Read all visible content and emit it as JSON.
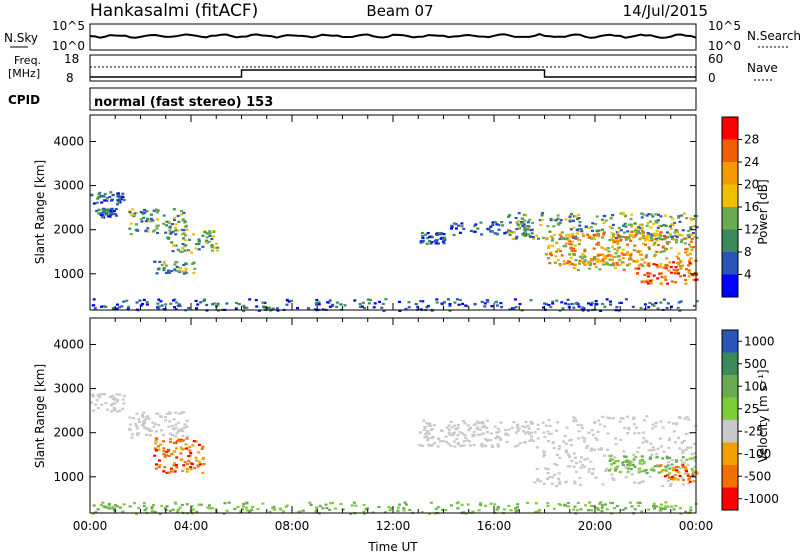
{
  "header": {
    "station": "Hankasalmi (fitACF)",
    "beam": "Beam 07",
    "date": "14/Jul/2015"
  },
  "top_panels": {
    "nsky_label": "N.Sky",
    "nsearch_label": "N.Search",
    "nsky_ticks": [
      "10^5",
      "10^0"
    ],
    "nsearch_ticks": [
      "10^5",
      "10^0"
    ],
    "freq_label_line1": "Freq.",
    "freq_label_line2": "[MHz]",
    "freq_ticks": [
      "18",
      "8"
    ],
    "nave_label": "Nave",
    "nave_ticks": [
      "60",
      "0"
    ],
    "cpid_label": "CPID",
    "cpid_text": "normal (fast stereo) 153"
  },
  "colors": {
    "power": [
      "#0000ff",
      "#2a55b8",
      "#3a8a5a",
      "#6aaa50",
      "#f0c000",
      "#f29a00",
      "#f06000",
      "#ff0000"
    ],
    "velocity": [
      "#2a55b8",
      "#3a8a5a",
      "#6aaa50",
      "#7ccc3a",
      "#c8c8c8",
      "#f0a000",
      "#f07000",
      "#ff0000"
    ],
    "ground_scatter": "#c0c0c0"
  },
  "chart_data": [
    {
      "type": "heatmap",
      "panel": "power",
      "ylabel": "Slant Range [km]",
      "xlabel": "",
      "ylim": [
        180,
        4600
      ],
      "yticks": [
        "1000",
        "2000",
        "3000",
        "4000"
      ],
      "xlim_hours": [
        0,
        24
      ],
      "colorbar_label": "Power [dB]",
      "colorbar_range": [
        0,
        32
      ],
      "colorbar_ticks": [
        "4",
        "8",
        "12",
        "16",
        "20",
        "24",
        "28"
      ],
      "scatter_regions": [
        {
          "t": [
            0.0,
            1.3
          ],
          "r": [
            2600,
            2900
          ],
          "level": "low"
        },
        {
          "t": [
            0.2,
            1.0
          ],
          "r": [
            2300,
            2500
          ],
          "level": "low"
        },
        {
          "t": [
            1.5,
            3.8
          ],
          "r": [
            1900,
            2500
          ],
          "level": "mid"
        },
        {
          "t": [
            3.0,
            5.0
          ],
          "r": [
            1500,
            2000
          ],
          "level": "mid"
        },
        {
          "t": [
            2.5,
            4.2
          ],
          "r": [
            1000,
            1300
          ],
          "level": "mid"
        },
        {
          "t": [
            0.0,
            24.0
          ],
          "r": [
            180,
            450
          ],
          "level": "low"
        },
        {
          "t": [
            13.0,
            14.0
          ],
          "r": [
            1700,
            1950
          ],
          "level": "low"
        },
        {
          "t": [
            14.2,
            17.5
          ],
          "r": [
            1900,
            2200
          ],
          "level": "low"
        },
        {
          "t": [
            16.5,
            24.0
          ],
          "r": [
            1800,
            2400
          ],
          "level": "mid"
        },
        {
          "t": [
            18.0,
            24.0
          ],
          "r": [
            1200,
            2000
          ],
          "level": "high"
        },
        {
          "t": [
            21.5,
            24.0
          ],
          "r": [
            800,
            1300
          ],
          "level": "peak"
        },
        {
          "t": [
            19.0,
            21.5
          ],
          "r": [
            1100,
            1500
          ],
          "level": "high"
        }
      ]
    },
    {
      "type": "heatmap",
      "panel": "velocity",
      "ylabel": "Slant Range [km]",
      "xlabel": "Time UT",
      "ylim": [
        180,
        4600
      ],
      "yticks": [
        "1000",
        "2000",
        "3000",
        "4000"
      ],
      "xticks": [
        "00:00",
        "04:00",
        "08:00",
        "12:00",
        "16:00",
        "20:00",
        "00:00"
      ],
      "xlim_hours": [
        0,
        24
      ],
      "colorbar_label": "Velocity [m s⁻¹]",
      "colorbar_ticks": [
        "1000",
        "500",
        "100",
        "25",
        "-25",
        "-100",
        "-500",
        "-1000"
      ],
      "scatter_regions": [
        {
          "t": [
            0.0,
            1.3
          ],
          "r": [
            2500,
            2900
          ],
          "class": "ground"
        },
        {
          "t": [
            1.5,
            3.8
          ],
          "r": [
            1900,
            2500
          ],
          "class": "ground"
        },
        {
          "t": [
            2.5,
            4.5
          ],
          "r": [
            1100,
            1900
          ],
          "class": "negative"
        },
        {
          "t": [
            0.0,
            24.0
          ],
          "r": [
            180,
            450
          ],
          "class": "positive"
        },
        {
          "t": [
            13.0,
            17.5
          ],
          "r": [
            1700,
            2300
          ],
          "class": "ground"
        },
        {
          "t": [
            17.5,
            24.0
          ],
          "r": [
            800,
            2400
          ],
          "class": "ground"
        },
        {
          "t": [
            20.5,
            24.0
          ],
          "r": [
            1100,
            1500
          ],
          "class": "positive"
        },
        {
          "t": [
            22.5,
            24.0
          ],
          "r": [
            900,
            1300
          ],
          "class": "negative"
        }
      ]
    }
  ]
}
